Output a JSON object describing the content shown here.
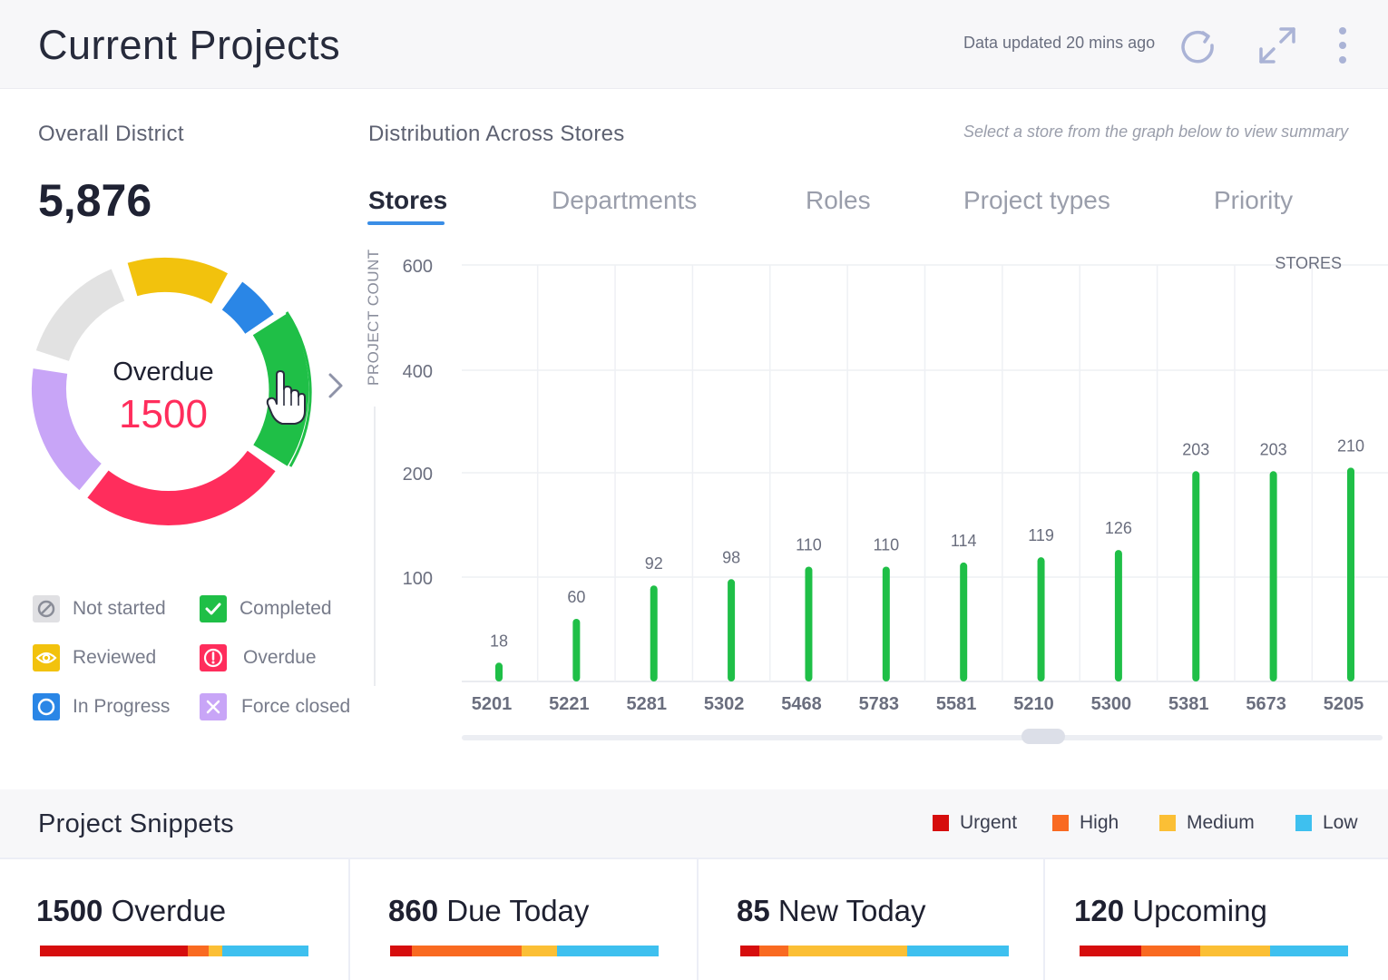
{
  "header": {
    "title": "Current Projects",
    "updated": "Data updated 20 mins ago"
  },
  "overall": {
    "title": "Overall District",
    "total": "5,876",
    "donut": {
      "selected_label": "Overdue",
      "selected_value": "1500",
      "segments": [
        {
          "name": "Completed",
          "color": "#1fbf47"
        },
        {
          "name": "Overdue",
          "color": "#ff2d5c"
        },
        {
          "name": "Force closed",
          "color": "#c8a5f7"
        },
        {
          "name": "Not started",
          "color": "#e2e2e2"
        },
        {
          "name": "Reviewed",
          "color": "#f2c20d"
        },
        {
          "name": "In Progress",
          "color": "#2a86e6"
        }
      ]
    },
    "legend": [
      {
        "label": "Not started",
        "icon": "ban-icon",
        "color": "#e0e0e3"
      },
      {
        "label": "Completed",
        "icon": "check-icon",
        "color": "#1fbf47"
      },
      {
        "label": "Reviewed",
        "icon": "eye-icon",
        "color": "#f2c20d"
      },
      {
        "label": "Overdue",
        "icon": "alert-icon",
        "color": "#ff2d5c"
      },
      {
        "label": "In Progress",
        "icon": "progress-icon",
        "color": "#2a86e6"
      },
      {
        "label": "Force closed",
        "icon": "close-icon",
        "color": "#c8a5f7"
      }
    ]
  },
  "distribution": {
    "title": "Distribution Across Stores",
    "hint": "Select a store from the graph below to view summary",
    "tabs": [
      "Stores",
      "Departments",
      "Roles",
      "Project types",
      "Priority"
    ],
    "active_tab": "Stores"
  },
  "chart_data": {
    "type": "bar",
    "title": "",
    "xlabel": "STORES",
    "ylabel": "PROJECT COUNT",
    "yticks": [
      "100",
      "200",
      "400",
      "600"
    ],
    "bar_color": "#1fbf47",
    "grid": true,
    "categories": [
      "5201",
      "5221",
      "5281",
      "5302",
      "5468",
      "5783",
      "5581",
      "5210",
      "5300",
      "5381",
      "5673",
      "5205"
    ],
    "values": [
      18,
      60,
      92,
      98,
      110,
      110,
      114,
      119,
      126,
      203,
      203,
      210
    ]
  },
  "snippets": {
    "title": "Project Snippets",
    "priorities": [
      {
        "label": "Urgent",
        "color": "#d60d0d"
      },
      {
        "label": "High",
        "color": "#f96a21"
      },
      {
        "label": "Medium",
        "color": "#fbbf35"
      },
      {
        "label": "Low",
        "color": "#3ec0ef"
      }
    ],
    "cards": [
      {
        "count": "1500",
        "label": "Overdue",
        "split": [
          0.55,
          0.08,
          0.05,
          0.32
        ]
      },
      {
        "count": "860",
        "label": "Due Today",
        "split": [
          0.08,
          0.41,
          0.13,
          0.38
        ]
      },
      {
        "count": "85",
        "label": "New Today",
        "split": [
          0.07,
          0.11,
          0.44,
          0.38
        ]
      },
      {
        "count": "120",
        "label": "Upcoming",
        "split": [
          0.23,
          0.22,
          0.26,
          0.29
        ]
      }
    ]
  }
}
